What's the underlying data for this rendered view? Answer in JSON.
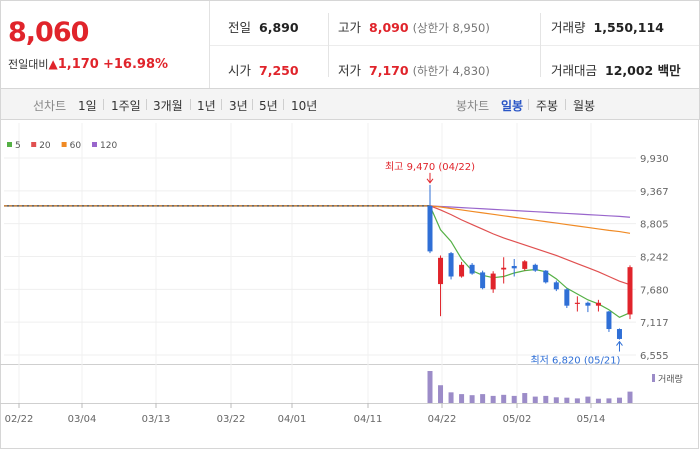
{
  "price": {
    "current": "8,060",
    "change_label": "전일대비",
    "change_arrow": "▲",
    "change_value": "1,170",
    "change_pct": "+16.98%"
  },
  "stats": {
    "prev_close_label": "전일",
    "prev_close": "6,890",
    "high_label": "고가",
    "high": "8,090",
    "upper_limit": "(상한가 8,950)",
    "volume_label": "거래량",
    "volume": "1,550,114",
    "open_label": "시가",
    "open": "7,250",
    "low_label": "저가",
    "low": "7,170",
    "lower_limit": "(하한가 4,830)",
    "value_label": "거래대금",
    "value": "12,002 백만"
  },
  "tabs": {
    "line_chart": "선차트",
    "periods": [
      "1일",
      "1주일",
      "3개월",
      "1년",
      "3년",
      "5년",
      "10년"
    ],
    "candle_chart": "봉차트",
    "candle_periods": [
      "일봉",
      "주봉",
      "월봉"
    ],
    "selected_candle": "일봉"
  },
  "colors": {
    "up": "#e0242b",
    "down": "#2f6fd6",
    "ma5": "#55b045",
    "ma20": "#e05050",
    "ma60": "#f08a24",
    "ma120": "#9966cc",
    "volume": "#9c8cc8"
  },
  "chart_data": {
    "type": "candlestick",
    "legend": [
      {
        "name": "5",
        "color": "#55b045"
      },
      {
        "name": "20",
        "color": "#e05050"
      },
      {
        "name": "60",
        "color": "#f08a24"
      },
      {
        "name": "120",
        "color": "#9966cc"
      }
    ],
    "y_ticks": [
      "9,930",
      "9,367",
      "8,805",
      "8,242",
      "7,680",
      "7,117",
      "6,555"
    ],
    "ylim": [
      6555,
      9930
    ],
    "x_ticks": [
      "02/22",
      "03/04",
      "03/13",
      "03/22",
      "04/01",
      "04/11",
      "04/22",
      "05/02",
      "05/14"
    ],
    "high_annotation": "최고 9,470 (04/22)",
    "low_annotation": "최저 6,820 (05/21)",
    "volume_label": "거래량",
    "flat_price": 9110,
    "candles": [
      {
        "o": 9110,
        "c": 8330,
        "h": 9470,
        "l": 8300
      },
      {
        "o": 7770,
        "c": 8220,
        "h": 8260,
        "l": 7220
      },
      {
        "o": 8300,
        "c": 7900,
        "h": 8320,
        "l": 7850
      },
      {
        "o": 7900,
        "c": 8100,
        "h": 8150,
        "l": 7880
      },
      {
        "o": 8100,
        "c": 7950,
        "h": 8130,
        "l": 7930
      },
      {
        "o": 7970,
        "c": 7700,
        "h": 8000,
        "l": 7680
      },
      {
        "o": 7680,
        "c": 7950,
        "h": 7990,
        "l": 7620
      },
      {
        "o": 8020,
        "c": 8050,
        "h": 8230,
        "l": 7780
      },
      {
        "o": 8080,
        "c": 8040,
        "h": 8200,
        "l": 7900
      },
      {
        "o": 8030,
        "c": 8160,
        "h": 8180,
        "l": 8000
      },
      {
        "o": 8100,
        "c": 8000,
        "h": 8120,
        "l": 7980
      },
      {
        "o": 8000,
        "c": 7800,
        "h": 8010,
        "l": 7780
      },
      {
        "o": 7800,
        "c": 7680,
        "h": 7830,
        "l": 7650
      },
      {
        "o": 7680,
        "c": 7400,
        "h": 7700,
        "l": 7360
      },
      {
        "o": 7430,
        "c": 7450,
        "h": 7560,
        "l": 7300
      },
      {
        "o": 7450,
        "c": 7400,
        "h": 7470,
        "l": 7290
      },
      {
        "o": 7400,
        "c": 7450,
        "h": 7500,
        "l": 7300
      },
      {
        "o": 7300,
        "c": 7000,
        "h": 7310,
        "l": 6950
      },
      {
        "o": 7000,
        "c": 6830,
        "h": 7010,
        "l": 6820
      },
      {
        "o": 7250,
        "c": 8060,
        "h": 8090,
        "l": 7170
      }
    ],
    "ma": {
      "ma5": [
        9110,
        8700,
        8500,
        8200,
        8000,
        7920,
        7880,
        7900,
        7960,
        8000,
        8020,
        7980,
        7860,
        7700,
        7600,
        7500,
        7430,
        7330,
        7200,
        7280
      ],
      "ma20": [
        9110,
        9040,
        8960,
        8870,
        8790,
        8710,
        8630,
        8560,
        8500,
        8440,
        8380,
        8320,
        8260,
        8190,
        8120,
        8050,
        7980,
        7900,
        7820,
        7760
      ],
      "ma60": [
        9110,
        9090,
        9065,
        9040,
        9015,
        8990,
        8965,
        8940,
        8915,
        8890,
        8865,
        8840,
        8815,
        8790,
        8765,
        8740,
        8715,
        8690,
        8670,
        8640
      ],
      "ma120": [
        9110,
        9100,
        9090,
        9080,
        9070,
        9060,
        9050,
        9040,
        9030,
        9020,
        9010,
        9000,
        8990,
        8980,
        8970,
        8960,
        8950,
        8940,
        8930,
        8915
      ]
    },
    "volume": [
      9,
      5,
      3,
      2.5,
      2.2,
      2.5,
      2,
      2.3,
      2,
      2.8,
      1.8,
      2,
      1.6,
      1.5,
      1.3,
      1.8,
      1.2,
      1.3,
      1.5,
      3.2
    ]
  }
}
